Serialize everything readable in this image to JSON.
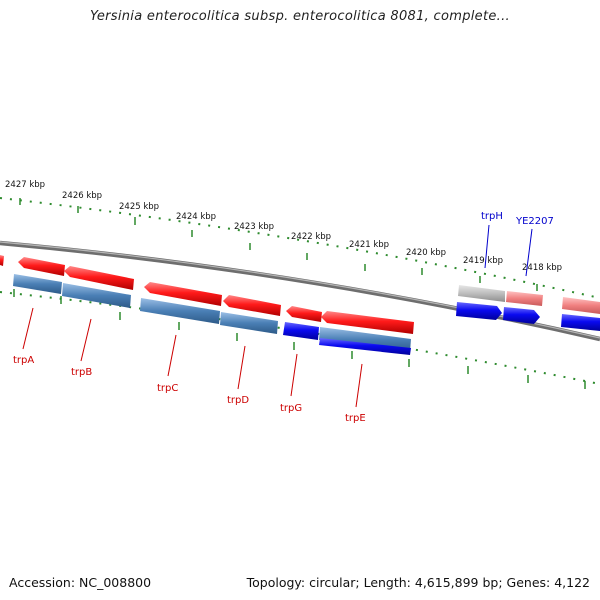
{
  "title": "Yersinia enterocolitica subsp. enterocolitica 8081, complete...",
  "footer": {
    "accession": "Accession: NC_008800",
    "summary": "Topology: circular; Length: 4,615,899 bp; Genes: 4,122"
  },
  "colors": {
    "backbone": "#8a8a8a",
    "tick": "#2e8b2e",
    "forward_cds": "#e81010",
    "forward_other": "#f08a8a",
    "reverse_trp": "#4a7fb5",
    "reverse_cds": "#0808e0",
    "gray_gene": "#b8b8b8",
    "label_reverse": "#cc0000",
    "label_forward": "#0000cc"
  },
  "scale_labels": [
    "2427 kbp",
    "2426 kbp",
    "2425 kbp",
    "2424 kbp",
    "2423 kbp",
    "2422 kbp",
    "2421 kbp",
    "2420 kbp",
    "2419 kbp",
    "2418 kbp"
  ],
  "gene_labels": [
    {
      "name": "trpA",
      "strand": "reverse"
    },
    {
      "name": "trpB",
      "strand": "reverse"
    },
    {
      "name": "trpC",
      "strand": "reverse"
    },
    {
      "name": "trpD",
      "strand": "reverse"
    },
    {
      "name": "trpG",
      "strand": "reverse"
    },
    {
      "name": "trpE",
      "strand": "reverse"
    },
    {
      "name": "trpH",
      "strand": "forward"
    },
    {
      "name": "YE2207",
      "strand": "forward"
    }
  ]
}
